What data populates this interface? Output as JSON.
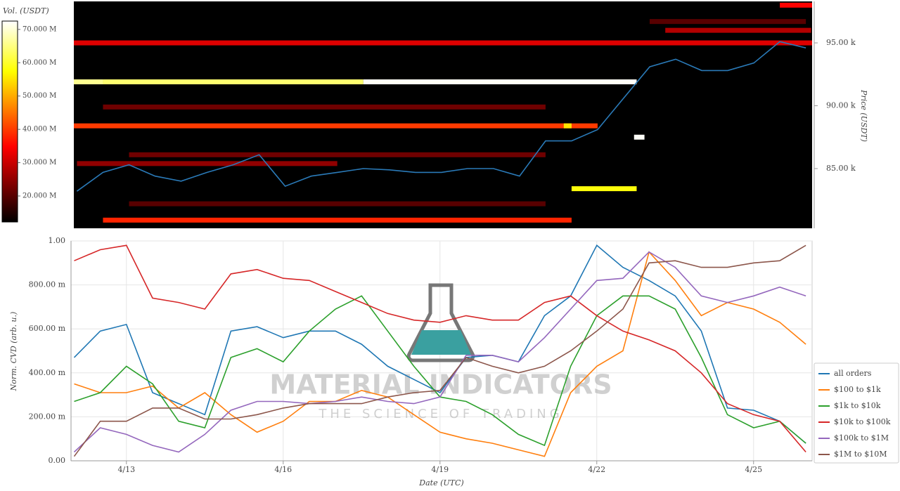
{
  "chart_data": [
    {
      "type": "heatmap",
      "colorbar_title": "Vol. (USDT)",
      "y2label": "Price (USDT)",
      "colormap": "hot",
      "clim": [
        12.2,
        72.5
      ],
      "cticks": [
        {
          "value": 20,
          "label": "20.000 M"
        },
        {
          "value": 30,
          "label": "30.000 M"
        },
        {
          "value": 40,
          "label": "40.000 M"
        },
        {
          "value": 50,
          "label": "50.000 M"
        },
        {
          "value": 60,
          "label": "60.000 M"
        },
        {
          "value": 70,
          "label": "70.000 M"
        }
      ],
      "xlim": [
        11.94,
        26.12
      ],
      "y2lim": [
        80.25,
        98.3
      ],
      "y2ticks": [
        {
          "value": 85,
          "label": "85.00 k"
        },
        {
          "value": 90,
          "label": "90.00 k"
        },
        {
          "value": 95,
          "label": "95.00 k"
        }
      ],
      "cells": [
        {
          "price": 95.0,
          "start": 11.94,
          "end": 26.12,
          "volume": 32
        },
        {
          "price": 91.9,
          "start": 11.94,
          "end": 12.5,
          "volume": 66
        },
        {
          "price": 91.9,
          "start": 12.5,
          "end": 17.5,
          "volume": 64
        },
        {
          "price": 91.9,
          "start": 17.5,
          "end": 22.75,
          "volume": 72
        },
        {
          "price": 88.4,
          "start": 11.94,
          "end": 22.0,
          "volume": 40
        },
        {
          "price": 88.4,
          "start": 21.35,
          "end": 21.5,
          "volume": 55
        },
        {
          "price": 83.4,
          "start": 21.5,
          "end": 22.75,
          "volume": 58
        },
        {
          "price": 80.9,
          "start": 12.5,
          "end": 21.5,
          "volume": 38
        },
        {
          "price": 87.5,
          "start": 22.7,
          "end": 22.9,
          "volume": 72
        },
        {
          "price": 98.0,
          "start": 25.5,
          "end": 26.12,
          "volume": 35
        },
        {
          "price": 96.0,
          "start": 23.3,
          "end": 26.1,
          "volume": 28
        },
        {
          "price": 96.7,
          "start": 23.0,
          "end": 26.0,
          "volume": 20
        },
        {
          "price": 89.9,
          "start": 12.5,
          "end": 21.0,
          "volume": 22
        },
        {
          "price": 86.1,
          "start": 13.0,
          "end": 21.0,
          "volume": 22
        },
        {
          "price": 82.2,
          "start": 13.0,
          "end": 21.0,
          "volume": 20
        },
        {
          "price": 85.4,
          "start": 12.0,
          "end": 17.0,
          "volume": 25
        }
      ],
      "x": [
        12,
        12.5,
        13,
        13.5,
        14,
        14.5,
        15,
        15.5,
        16,
        16.5,
        17,
        17.5,
        18,
        18.5,
        19,
        19.5,
        20,
        20.5,
        21,
        21.5,
        22,
        22.5,
        23,
        23.5,
        24,
        24.5,
        25,
        25.5,
        26
      ],
      "series": [
        {
          "color": "#2a7ab8",
          "axis": "y2",
          "values": [
            83.2,
            84.7,
            85.3,
            84.4,
            84.0,
            84.7,
            85.3,
            86.1,
            83.6,
            84.4,
            84.7,
            85.0,
            84.9,
            84.7,
            84.7,
            85.0,
            85.0,
            84.4,
            87.2,
            87.2,
            88.1,
            90.6,
            93.1,
            93.7,
            92.8,
            92.8,
            93.4,
            95.1,
            94.6
          ]
        }
      ]
    },
    {
      "type": "line",
      "xlabel": "Date (UTC)",
      "ylabel": "Norm. CVD (arb. u.)",
      "watermark": [
        "MATERIAL INDICATORS",
        "THE SCIENCE OF TRADING"
      ],
      "grid": true,
      "legend": "right",
      "xlim": [
        11.94,
        26.12
      ],
      "xticks": [
        {
          "value": 13,
          "label": "4/13"
        },
        {
          "value": 16,
          "label": "4/16"
        },
        {
          "value": 19,
          "label": "4/19"
        },
        {
          "value": 22,
          "label": "4/22"
        },
        {
          "value": 25,
          "label": "4/25"
        }
      ],
      "ylim": [
        0,
        1
      ],
      "yticks": [
        {
          "value": 0,
          "label": "0.00"
        },
        {
          "value": 0.2,
          "label": "200.00 m"
        },
        {
          "value": 0.4,
          "label": "400.00 m"
        },
        {
          "value": 0.6,
          "label": "600.00 m"
        },
        {
          "value": 0.8,
          "label": "800.00 m"
        },
        {
          "value": 1,
          "label": "1.00"
        }
      ],
      "x": [
        12,
        12.5,
        13,
        13.5,
        14,
        14.5,
        15,
        15.5,
        16,
        16.5,
        17,
        17.5,
        18,
        18.5,
        19,
        19.5,
        20,
        20.5,
        21,
        21.5,
        22,
        22.5,
        23,
        23.5,
        24,
        24.5,
        25,
        25.5,
        26
      ],
      "series": [
        {
          "name": "all orders",
          "color": "#1f77b4",
          "values": [
            0.47,
            0.59,
            0.62,
            0.31,
            0.26,
            0.21,
            0.59,
            0.61,
            0.56,
            0.59,
            0.59,
            0.53,
            0.43,
            0.37,
            0.31,
            0.47,
            0.48,
            0.45,
            0.66,
            0.75,
            0.98,
            0.88,
            0.82,
            0.75,
            0.59,
            0.24,
            0.23,
            0.18,
            0.08
          ]
        },
        {
          "name": "$100 to $1k",
          "color": "#ff7f0e",
          "values": [
            0.35,
            0.31,
            0.31,
            0.34,
            0.24,
            0.31,
            0.21,
            0.13,
            0.18,
            0.27,
            0.27,
            0.32,
            0.29,
            0.21,
            0.13,
            0.1,
            0.08,
            0.05,
            0.02,
            0.31,
            0.43,
            0.5,
            0.95,
            0.82,
            0.66,
            0.72,
            0.69,
            0.63,
            0.53
          ]
        },
        {
          "name": "$1k to $10k",
          "color": "#2ca02c",
          "values": [
            0.27,
            0.31,
            0.43,
            0.35,
            0.18,
            0.15,
            0.47,
            0.51,
            0.45,
            0.59,
            0.69,
            0.75,
            0.59,
            0.43,
            0.29,
            0.27,
            0.21,
            0.12,
            0.07,
            0.43,
            0.66,
            0.75,
            0.75,
            0.69,
            0.47,
            0.21,
            0.15,
            0.18,
            0.08
          ]
        },
        {
          "name": "$10k to $100k",
          "color": "#d62728",
          "values": [
            0.91,
            0.96,
            0.98,
            0.74,
            0.72,
            0.69,
            0.85,
            0.87,
            0.83,
            0.82,
            0.77,
            0.72,
            0.67,
            0.64,
            0.63,
            0.66,
            0.64,
            0.64,
            0.72,
            0.75,
            0.66,
            0.59,
            0.55,
            0.5,
            0.4,
            0.26,
            0.21,
            0.18,
            0.04
          ]
        },
        {
          "name": "$100k to $1M",
          "color": "#9467bd",
          "values": [
            0.04,
            0.15,
            0.12,
            0.07,
            0.04,
            0.12,
            0.23,
            0.27,
            0.27,
            0.26,
            0.27,
            0.29,
            0.27,
            0.26,
            0.29,
            0.48,
            0.48,
            0.45,
            0.56,
            0.69,
            0.82,
            0.83,
            0.95,
            0.88,
            0.75,
            0.72,
            0.75,
            0.79,
            0.75
          ]
        },
        {
          "name": "$1M to $10M",
          "color": "#8c564b",
          "values": [
            0.02,
            0.18,
            0.18,
            0.24,
            0.24,
            0.19,
            0.19,
            0.21,
            0.24,
            0.26,
            0.26,
            0.26,
            0.29,
            0.31,
            0.32,
            0.47,
            0.43,
            0.4,
            0.43,
            0.5,
            0.59,
            0.69,
            0.9,
            0.91,
            0.88,
            0.88,
            0.9,
            0.91,
            0.98
          ]
        }
      ]
    }
  ]
}
